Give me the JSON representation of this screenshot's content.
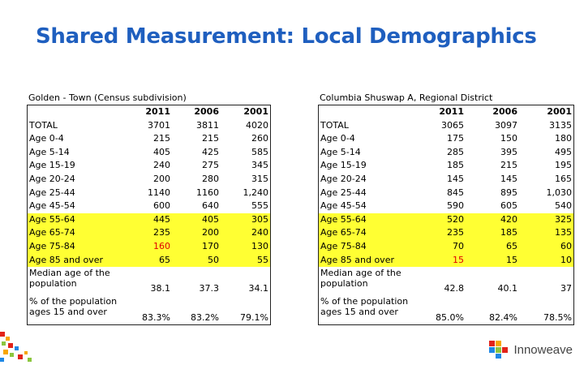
{
  "title": "Shared Measurement: Local Demographics",
  "tables": [
    {
      "caption": "Golden - Town (Census subdivision)",
      "columns": [
        "",
        "2011",
        "2006",
        "2001"
      ],
      "rows": [
        {
          "label": "TOTAL",
          "values": [
            "3701",
            "3811",
            "4020"
          ],
          "highlight": false
        },
        {
          "label": "Age 0-4",
          "values": [
            "215",
            "215",
            "260"
          ],
          "highlight": false
        },
        {
          "label": "Age 5-14",
          "values": [
            "405",
            "425",
            "585"
          ],
          "highlight": false
        },
        {
          "label": "Age 15-19",
          "values": [
            "240",
            "275",
            "345"
          ],
          "highlight": false
        },
        {
          "label": "Age 20-24",
          "values": [
            "200",
            "280",
            "315"
          ],
          "highlight": false
        },
        {
          "label": "Age 25-44",
          "values": [
            "1140",
            "1160",
            "1,240"
          ],
          "highlight": false
        },
        {
          "label": "Age 45-54",
          "values": [
            "600",
            "640",
            "555"
          ],
          "highlight": false
        },
        {
          "label": "Age 55-64",
          "values": [
            "445",
            "405",
            "305"
          ],
          "highlight": true
        },
        {
          "label": "Age 65-74",
          "values": [
            "235",
            "200",
            "240"
          ],
          "highlight": true
        },
        {
          "label": "Age 75-84",
          "values": [
            "160",
            "170",
            "130"
          ],
          "highlight": true,
          "red": [
            0
          ]
        },
        {
          "label": "Age 85 and over",
          "values": [
            "65",
            "50",
            "55"
          ],
          "highlight": true
        },
        {
          "label": "Median age of the population",
          "values": [
            "38.1",
            "37.3",
            "34.1"
          ],
          "highlight": false,
          "tall": true
        },
        {
          "label": "% of the population ages 15 and over",
          "values": [
            "83.3%",
            "83.2%",
            "79.1%"
          ],
          "highlight": false,
          "tall": true
        }
      ]
    },
    {
      "caption": "Columbia Shuswap A, Regional District",
      "columns": [
        "",
        "2011",
        "2006",
        "2001"
      ],
      "rows": [
        {
          "label": "TOTAL",
          "values": [
            "3065",
            "3097",
            "3135"
          ],
          "highlight": false
        },
        {
          "label": "Age 0-4",
          "values": [
            "175",
            "150",
            "180"
          ],
          "highlight": false
        },
        {
          "label": "Age 5-14",
          "values": [
            "285",
            "395",
            "495"
          ],
          "highlight": false
        },
        {
          "label": "Age 15-19",
          "values": [
            "185",
            "215",
            "195"
          ],
          "highlight": false
        },
        {
          "label": "Age 20-24",
          "values": [
            "145",
            "145",
            "165"
          ],
          "highlight": false
        },
        {
          "label": "Age 25-44",
          "values": [
            "845",
            "895",
            "1,030"
          ],
          "highlight": false
        },
        {
          "label": "Age 45-54",
          "values": [
            "590",
            "605",
            "540"
          ],
          "highlight": false
        },
        {
          "label": "Age 55-64",
          "values": [
            "520",
            "420",
            "325"
          ],
          "highlight": true
        },
        {
          "label": "Age 65-74",
          "values": [
            "235",
            "185",
            "135"
          ],
          "highlight": true
        },
        {
          "label": "Age 75-84",
          "values": [
            "70",
            "65",
            "60"
          ],
          "highlight": true
        },
        {
          "label": "Age 85 and over",
          "values": [
            "15",
            "15",
            "10"
          ],
          "highlight": true,
          "red": [
            0
          ]
        },
        {
          "label": "Median age of the population",
          "values": [
            "42.8",
            "40.1",
            "37"
          ],
          "highlight": false,
          "tall": true
        },
        {
          "label": "% of the population ages 15 and over",
          "values": [
            "85.0%",
            "82.4%",
            "78.5%"
          ],
          "highlight": false,
          "tall": true
        }
      ]
    }
  ],
  "colors": {
    "title": "#1f5fbf",
    "highlight": "#ffff33",
    "red_text": "#e00000"
  },
  "logo": {
    "text": "Innoweave",
    "icon": "innoweave-logo-icon"
  }
}
